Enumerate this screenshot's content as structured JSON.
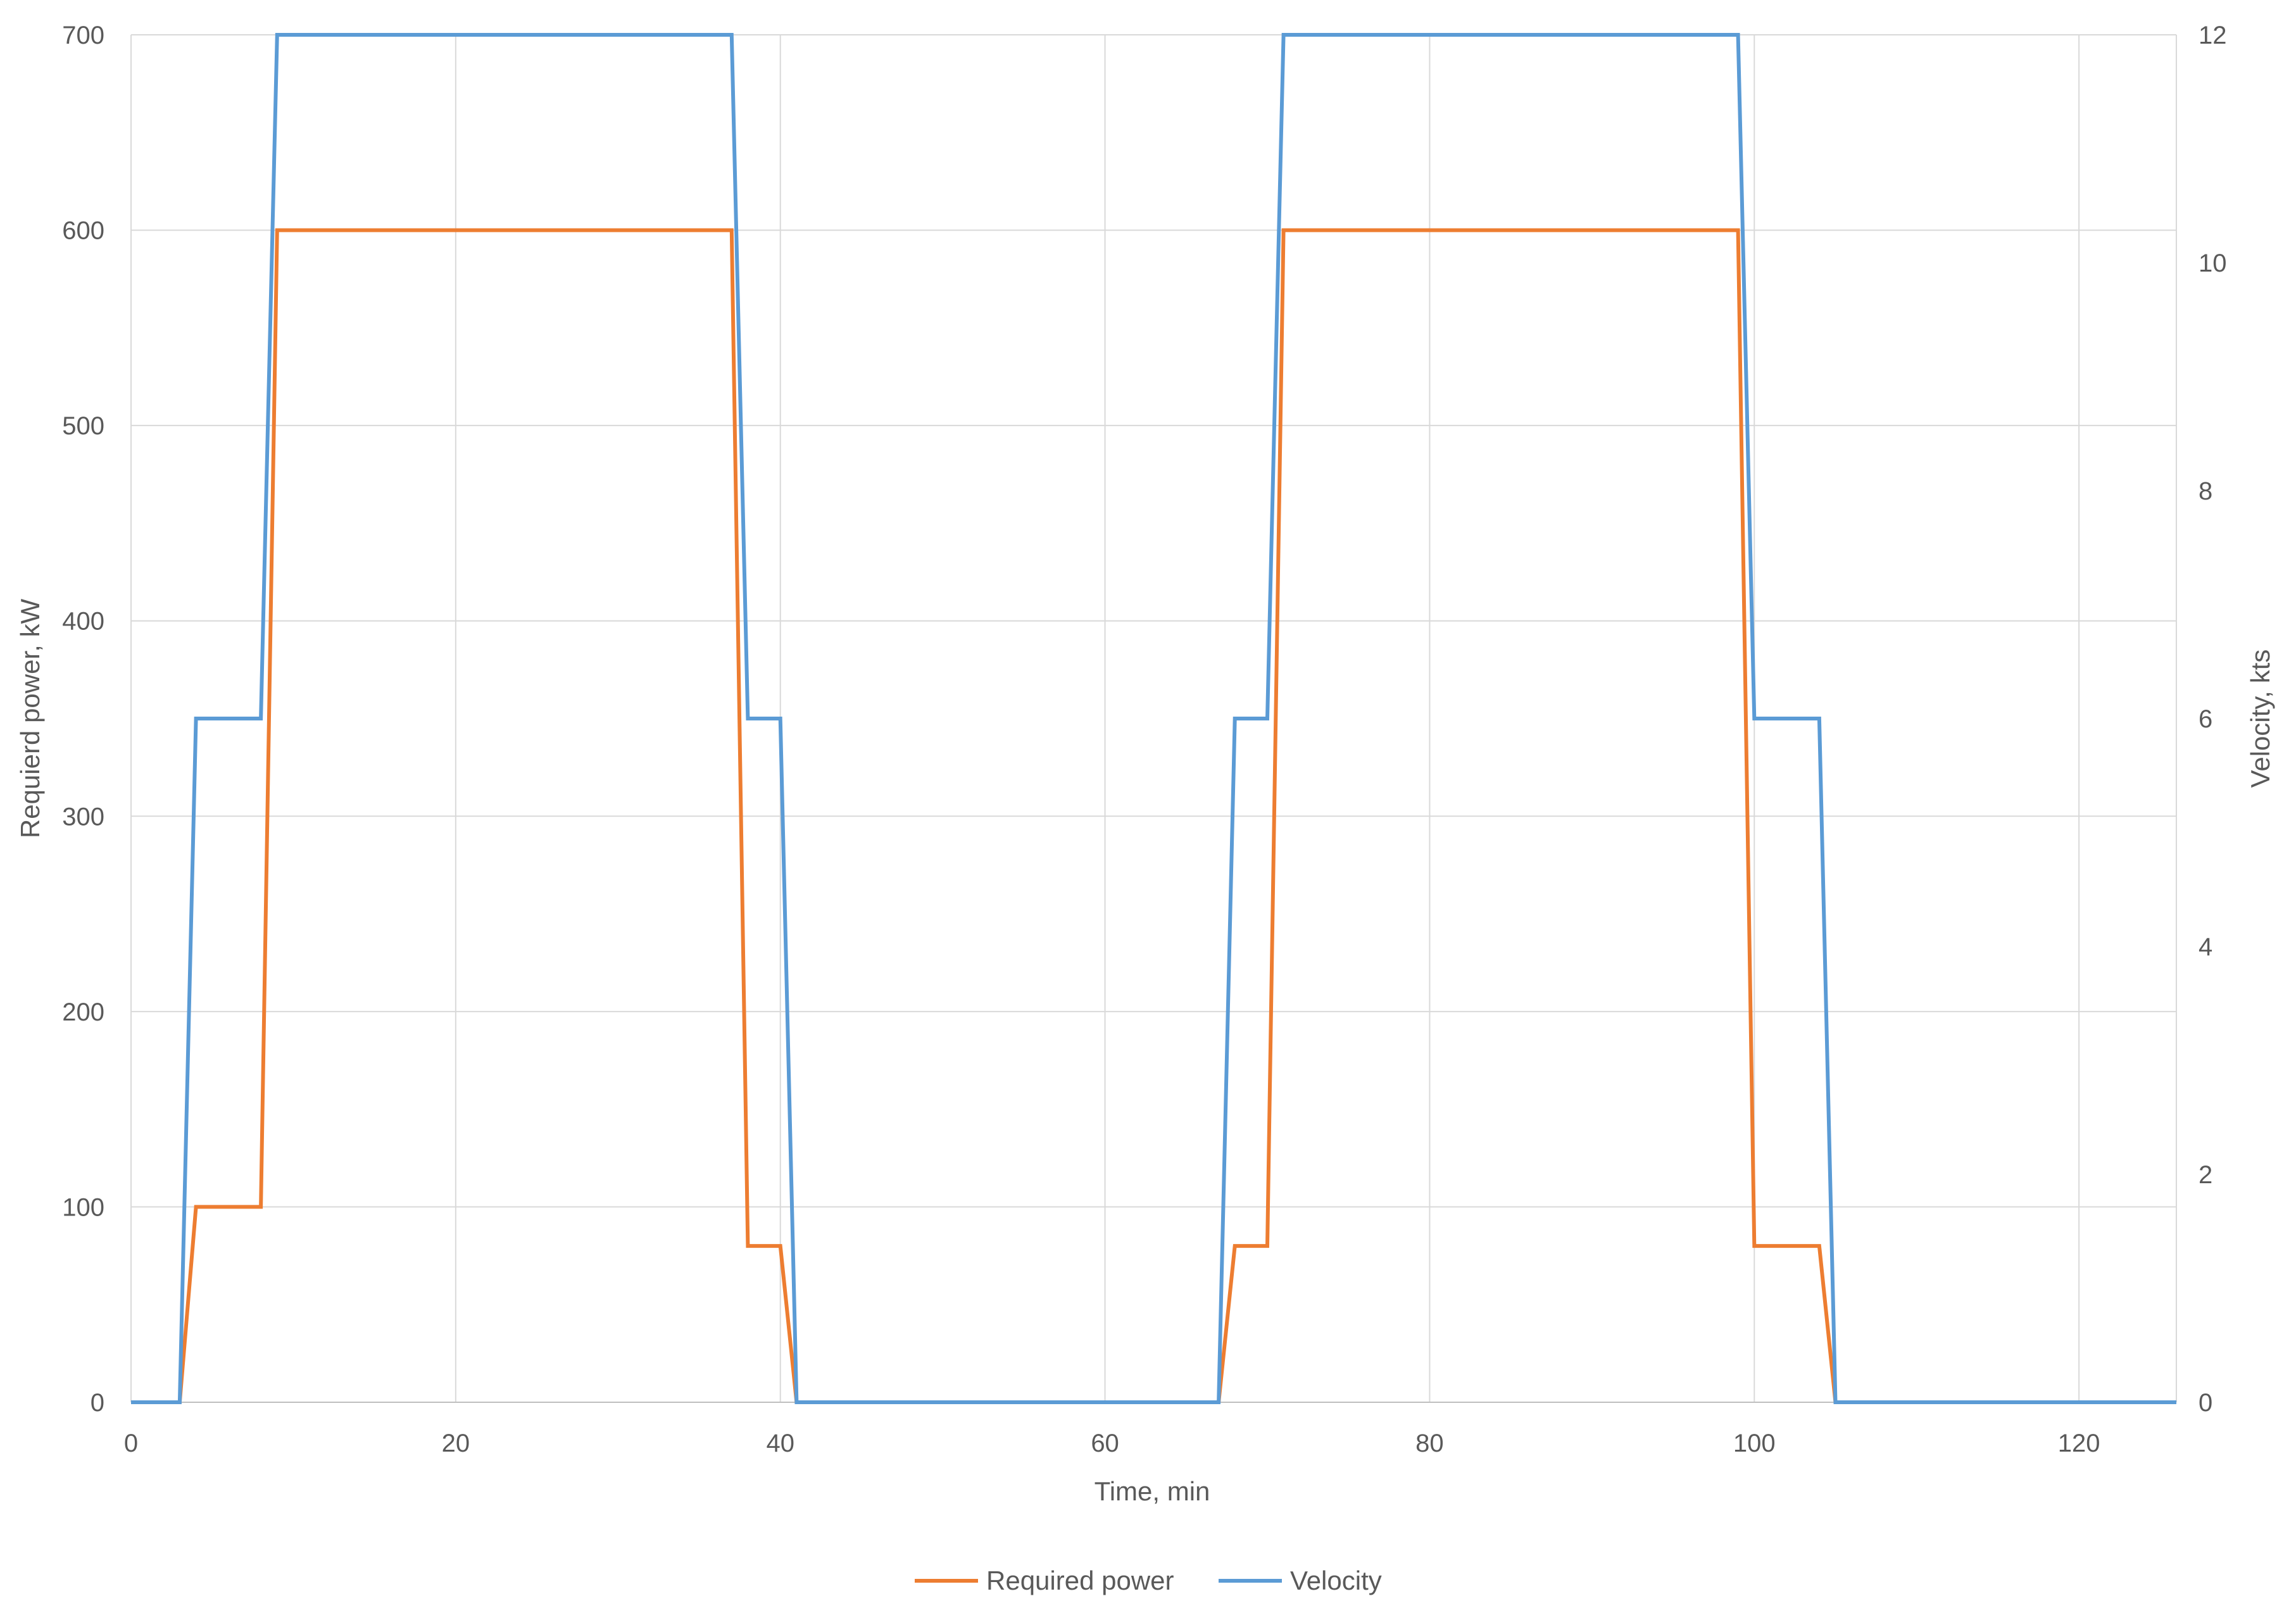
{
  "chart_data": {
    "type": "line",
    "title": "",
    "xlabel": "Time, min",
    "ylabel_left": "Requierd power, kW",
    "ylabel_right": "Velocity, kts",
    "xlim": [
      0,
      126
    ],
    "ylim_left": [
      0,
      700
    ],
    "ylim_right": [
      0,
      12
    ],
    "x_ticks": [
      0,
      20,
      40,
      60,
      80,
      100,
      120
    ],
    "y_ticks_left": [
      0,
      100,
      200,
      300,
      400,
      500,
      600,
      700
    ],
    "y_ticks_right": [
      0,
      2,
      4,
      6,
      8,
      10,
      12
    ],
    "grid": true,
    "legend_position": "bottom",
    "series": [
      {
        "name": "Required power",
        "axis": "left",
        "color": "#ED7D31",
        "x": [
          0,
          3,
          4,
          8,
          9,
          37,
          38,
          40,
          41,
          67,
          68,
          70,
          71,
          99,
          100,
          104,
          105,
          126
        ],
        "y": [
          0,
          0,
          100,
          100,
          600,
          600,
          80,
          80,
          0,
          0,
          80,
          80,
          600,
          600,
          80,
          80,
          0,
          0
        ]
      },
      {
        "name": "Velocity",
        "axis": "right",
        "color": "#5B9BD5",
        "x": [
          0,
          3,
          4,
          8,
          9,
          37,
          38,
          40,
          41,
          67,
          68,
          70,
          71,
          99,
          100,
          104,
          105,
          126
        ],
        "y": [
          0,
          0,
          6,
          6,
          12,
          12,
          6,
          6,
          0,
          0,
          6,
          6,
          12,
          12,
          6,
          6,
          0,
          0
        ]
      }
    ]
  }
}
